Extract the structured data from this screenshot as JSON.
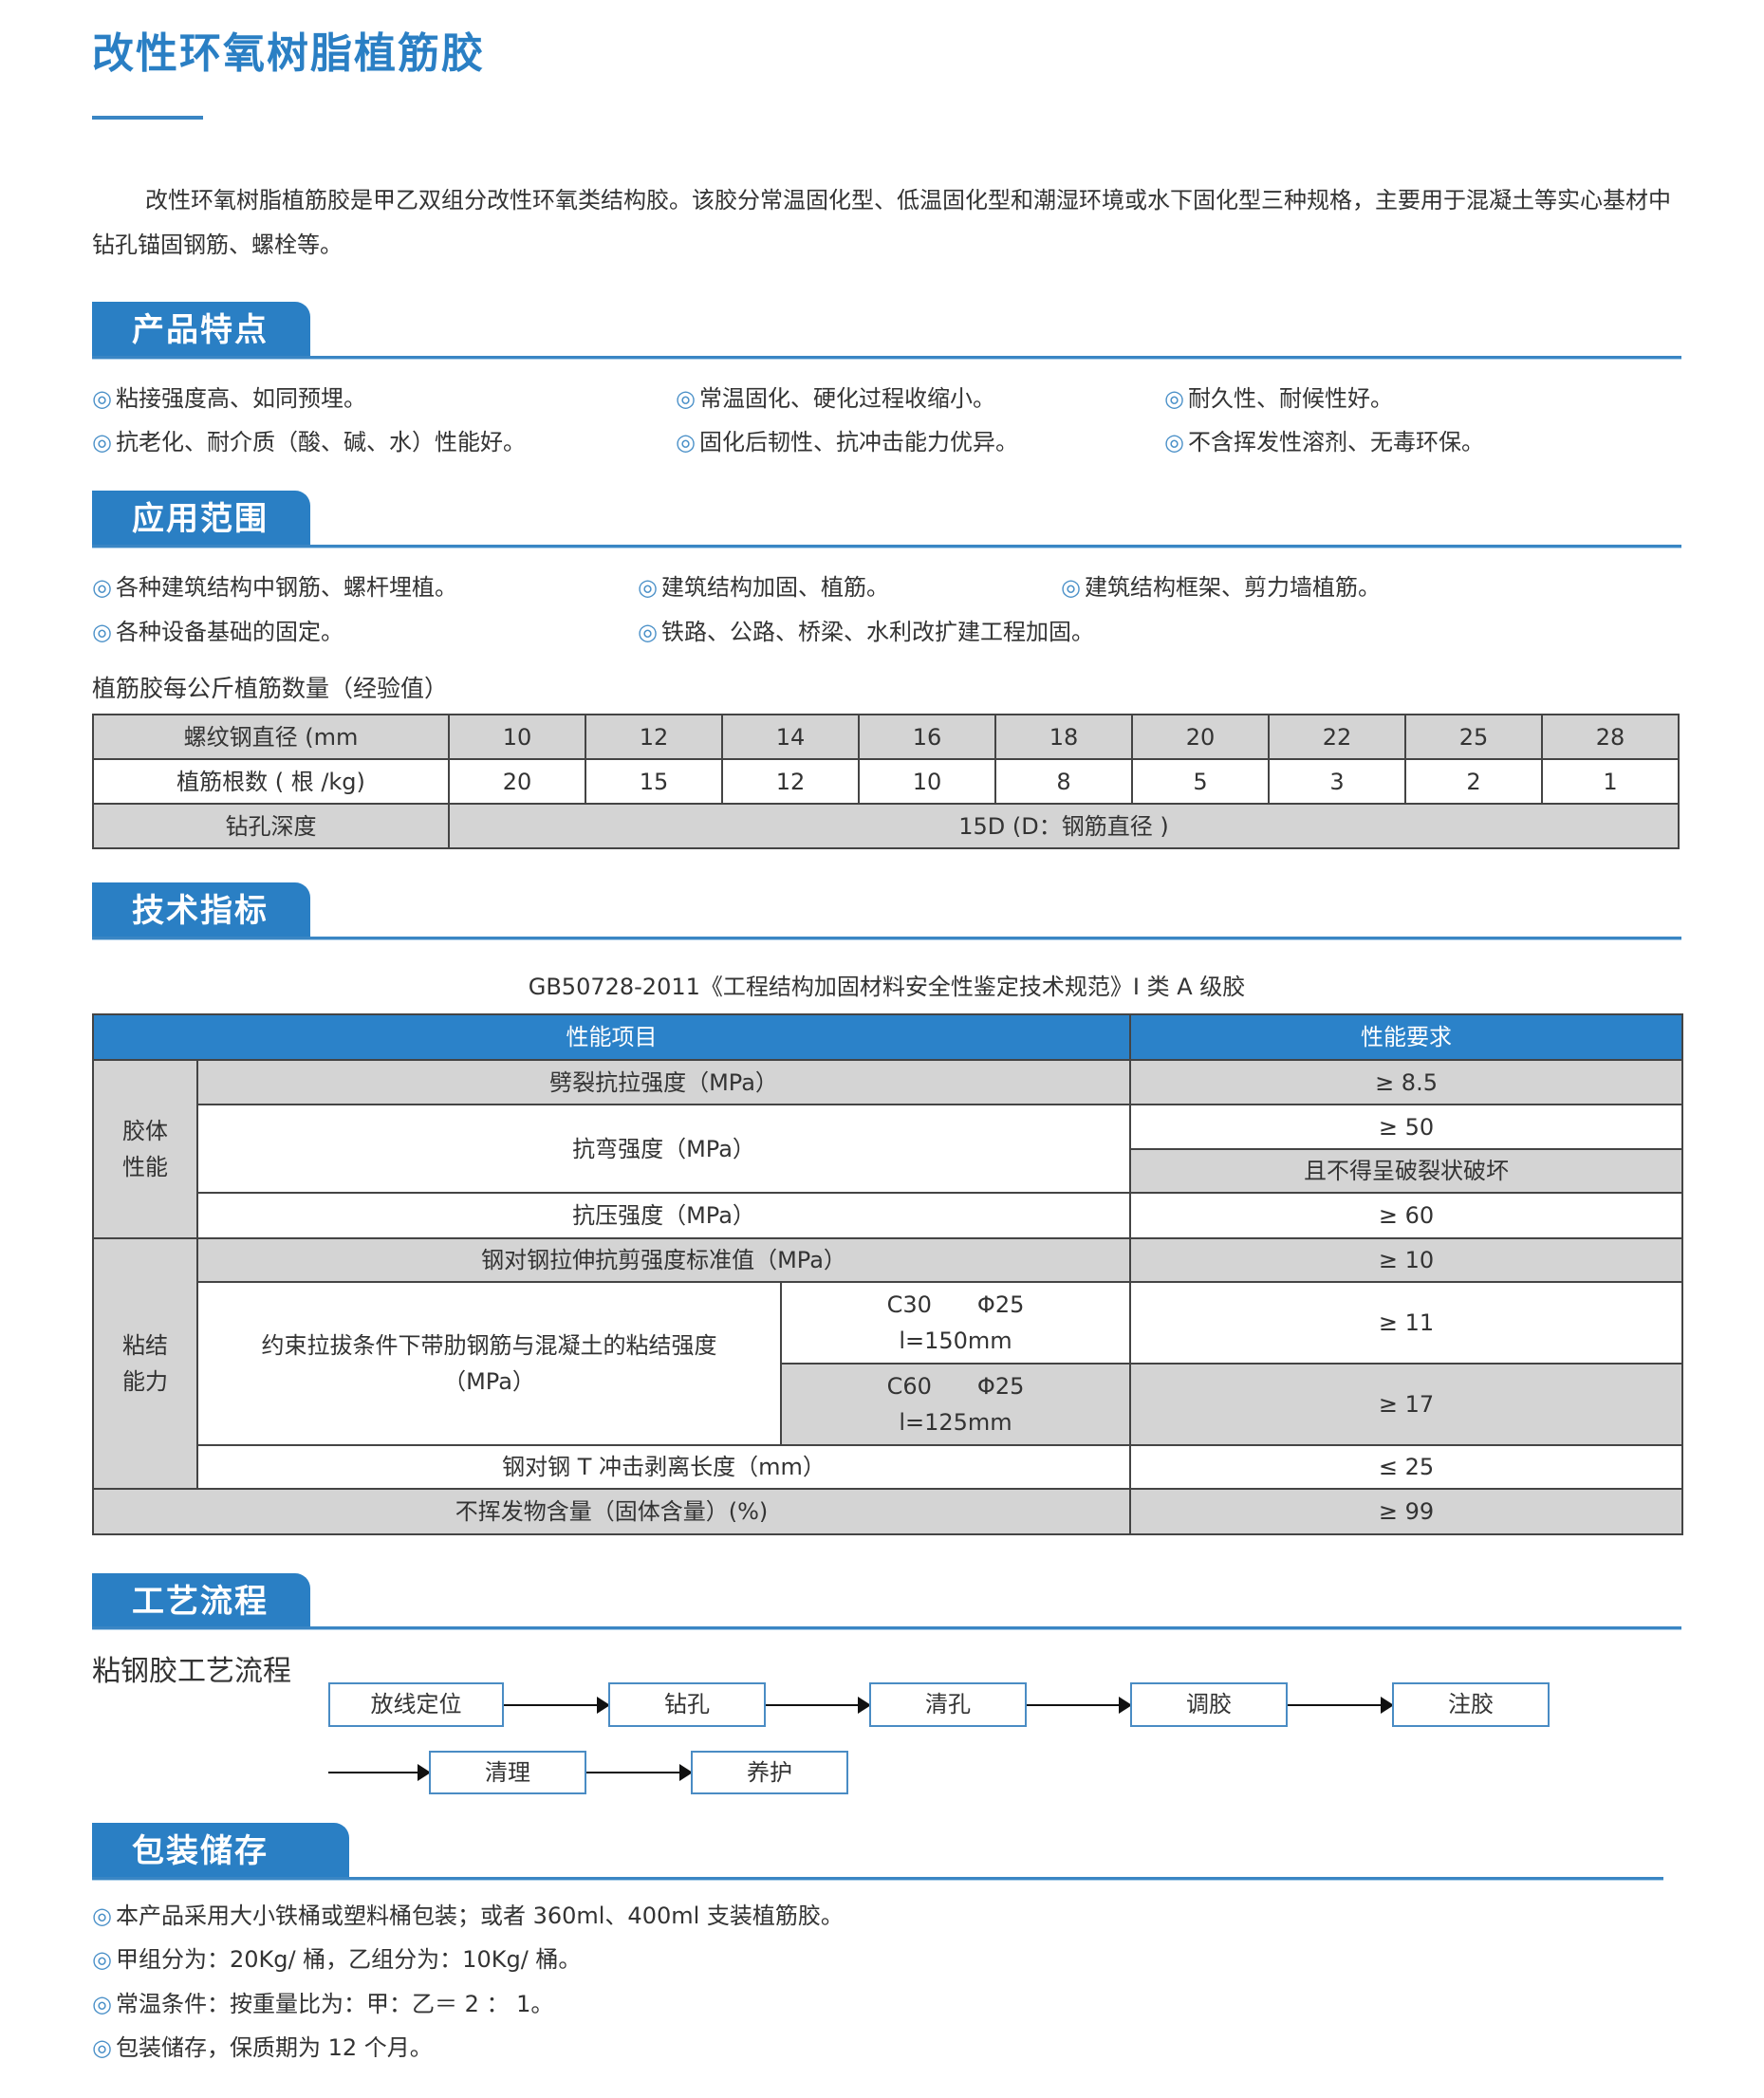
{
  "title": "改性环氧树脂植筋胶",
  "intro": "改性环氧树脂植筋胶是甲乙双组分改性环氧类结构胶。该胶分常温固化型、低温固化型和潮湿环境或水下固化型三种规格，主要用于混凝土等实心基材中钻孔锚固钢筋、螺栓等。",
  "bullet_icon": "◎",
  "features": {
    "heading": "产品特点",
    "items": [
      "粘接强度高、如同预埋。",
      "常温固化、硬化过程收缩小。",
      "耐久性、耐候性好。",
      "抗老化、耐介质（酸、碱、水）性能好。",
      "固化后韧性、抗冲击能力优异。",
      "不含挥发性溶剂、无毒环保。"
    ]
  },
  "applications": {
    "heading": "应用范围",
    "items": [
      "各种建筑结构中钢筋、螺杆埋植。",
      "建筑结构加固、植筋。",
      "建筑结构框架、剪力墙植筋。",
      "各种设备基础的固定。",
      "铁路、公路、桥梁、水利改扩建工程加固。"
    ]
  },
  "usage_table": {
    "title": "植筋胶每公斤植筋数量（经验值）",
    "row_labels": [
      "螺纹钢直径 (mm",
      "植筋根数 ( 根 /kg)",
      "钻孔深度"
    ],
    "diameters": [
      "10",
      "12",
      "14",
      "16",
      "18",
      "20",
      "22",
      "25",
      "28"
    ],
    "counts": [
      "20",
      "15",
      "12",
      "10",
      "8",
      "5",
      "3",
      "2",
      "1"
    ],
    "depth": "15D (D：钢筋直径 )"
  },
  "specs": {
    "heading": "技术指标",
    "caption": "GB50728-2011《工程结构加固材料安全性鉴定技术规范》I 类 A 级胶",
    "col_item": "性能项目",
    "col_req": "性能要求",
    "group1": "胶体\n性能",
    "group2": "粘结\n能力",
    "r1": "劈裂抗拉强度（MPa）",
    "r1v": "≥ 8.5",
    "r2": "抗弯强度（MPa）",
    "r2v": "≥ 50",
    "r2v2": "且不得呈破裂状破坏",
    "r3": "抗压强度（MPa）",
    "r3v": "≥ 60",
    "r4": "钢对钢拉伸抗剪强度标准值（MPa）",
    "r4v": "≥ 10",
    "r5": "约束拉拔条件下带肋钢筋与混凝土的粘结强度\n（MPa）",
    "r5a": "C30　　Φ25\nl=150mm",
    "r5av": "≥ 11",
    "r5b": "C60　　Φ25\nl=125mm",
    "r5bv": "≥ 17",
    "r6": "钢对钢 T 冲击剥离长度（mm）",
    "r6v": "≤ 25",
    "r7": "不挥发物含量（固体含量）(%)",
    "r7v": "≥ 99"
  },
  "process": {
    "heading": "工艺流程",
    "title": "粘钢胶工艺流程",
    "steps": [
      "放线定位",
      "钻孔",
      "清孔",
      "调胶",
      "注胶",
      "清理",
      "养护"
    ]
  },
  "packaging": {
    "heading": "包装储存",
    "items": [
      "本产品采用大小铁桶或塑料桶包装；或者 360ml、400ml 支装植筋胶。",
      "甲组分为：20Kg/ 桶，乙组分为：10Kg/ 桶。",
      "常温条件：按重量比为：甲：乙＝ 2 ： 1。",
      "包装储存，保质期为 12 个月。"
    ]
  },
  "colors": {
    "accent": "#2a7fc4",
    "table_gray": "#d4d4d4"
  }
}
